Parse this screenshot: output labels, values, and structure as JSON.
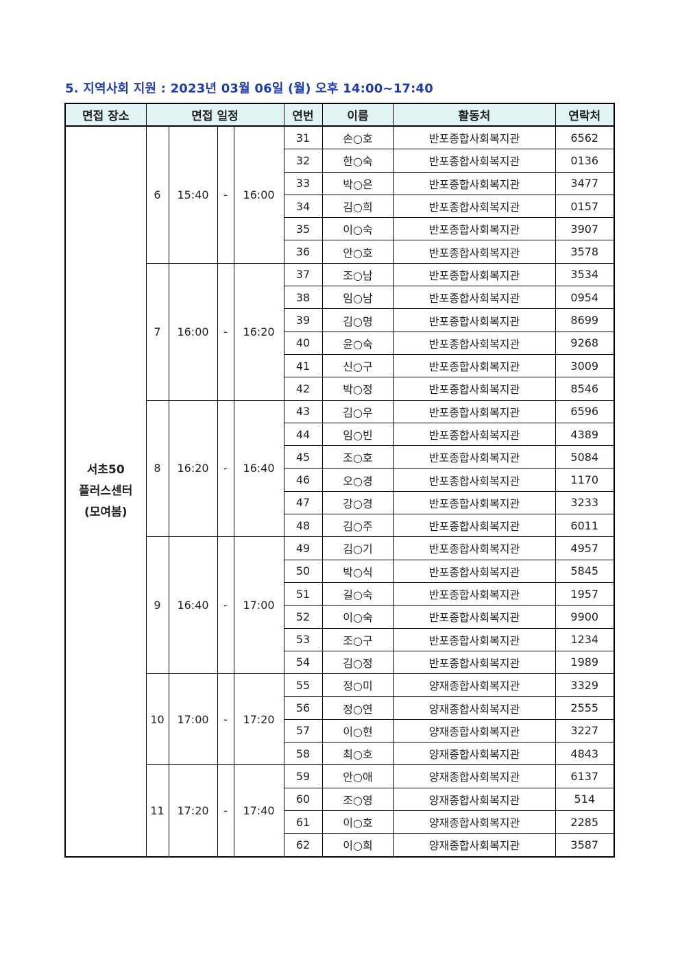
{
  "title": "5. 지역사회 지원 : 2023년 03월 06일 (월) 오후 14:00~17:40",
  "header": {
    "place": "면접 장소",
    "schedule": "면접 일정",
    "no": "연번",
    "name": "이름",
    "org": "활동처",
    "contact": "연락처"
  },
  "place_lines": [
    "서초50",
    "플러스센터",
    "(모여봄)"
  ],
  "colors": {
    "title": "#1e3cae",
    "header_bg": "#e2f4f4"
  },
  "groups": [
    {
      "slot": "6",
      "start": "15:40",
      "dash": "-",
      "end": "16:00",
      "rows": [
        [
          "31",
          "손○호",
          "반포종합사회복지관",
          "6562"
        ],
        [
          "32",
          "한○숙",
          "반포종합사회복지관",
          "0136"
        ],
        [
          "33",
          "박○은",
          "반포종합사회복지관",
          "3477"
        ],
        [
          "34",
          "김○희",
          "반포종합사회복지관",
          "0157"
        ],
        [
          "35",
          "이○숙",
          "반포종합사회복지관",
          "3907"
        ],
        [
          "36",
          "안○호",
          "반포종합사회복지관",
          "3578"
        ]
      ]
    },
    {
      "slot": "7",
      "start": "16:00",
      "dash": "-",
      "end": "16:20",
      "rows": [
        [
          "37",
          "조○남",
          "반포종합사회복지관",
          "3534"
        ],
        [
          "38",
          "임○남",
          "반포종합사회복지관",
          "0954"
        ],
        [
          "39",
          "김○명",
          "반포종합사회복지관",
          "8699"
        ],
        [
          "40",
          "윤○숙",
          "반포종합사회복지관",
          "9268"
        ],
        [
          "41",
          "신○구",
          "반포종합사회복지관",
          "3009"
        ],
        [
          "42",
          "박○정",
          "반포종합사회복지관",
          "8546"
        ]
      ]
    },
    {
      "slot": "8",
      "start": "16:20",
      "dash": "-",
      "end": "16:40",
      "rows": [
        [
          "43",
          "김○우",
          "반포종합사회복지관",
          "6596"
        ],
        [
          "44",
          "임○빈",
          "반포종합사회복지관",
          "4389"
        ],
        [
          "45",
          "조○호",
          "반포종합사회복지관",
          "5084"
        ],
        [
          "46",
          "오○경",
          "반포종합사회복지관",
          "1170"
        ],
        [
          "47",
          "강○경",
          "반포종합사회복지관",
          "3233"
        ],
        [
          "48",
          "김○주",
          "반포종합사회복지관",
          "6011"
        ]
      ]
    },
    {
      "slot": "9",
      "start": "16:40",
      "dash": "-",
      "end": "17:00",
      "rows": [
        [
          "49",
          "김○기",
          "반포종합사회복지관",
          "4957"
        ],
        [
          "50",
          "박○식",
          "반포종합사회복지관",
          "5845"
        ],
        [
          "51",
          "길○숙",
          "반포종합사회복지관",
          "1957"
        ],
        [
          "52",
          "이○숙",
          "반포종합사회복지관",
          "9900"
        ],
        [
          "53",
          "조○구",
          "반포종합사회복지관",
          "1234"
        ],
        [
          "54",
          "김○정",
          "반포종합사회복지관",
          "1989"
        ]
      ]
    },
    {
      "slot": "10",
      "start": "17:00",
      "dash": "-",
      "end": "17:20",
      "rows": [
        [
          "55",
          "정○미",
          "양재종합사회복지관",
          "3329"
        ],
        [
          "56",
          "정○연",
          "양재종합사회복지관",
          "2555"
        ],
        [
          "57",
          "이○현",
          "양재종합사회복지관",
          "3227"
        ],
        [
          "58",
          "최○호",
          "양재종합사회복지관",
          "4843"
        ]
      ]
    },
    {
      "slot": "11",
      "start": "17:20",
      "dash": "-",
      "end": "17:40",
      "rows": [
        [
          "59",
          "안○애",
          "양재종합사회복지관",
          "6137"
        ],
        [
          "60",
          "조○영",
          "양재종합사회복지관",
          "514"
        ],
        [
          "61",
          "이○호",
          "양재종합사회복지관",
          "2285"
        ],
        [
          "62",
          "이○희",
          "양재종합사회복지관",
          "3587"
        ]
      ]
    }
  ]
}
